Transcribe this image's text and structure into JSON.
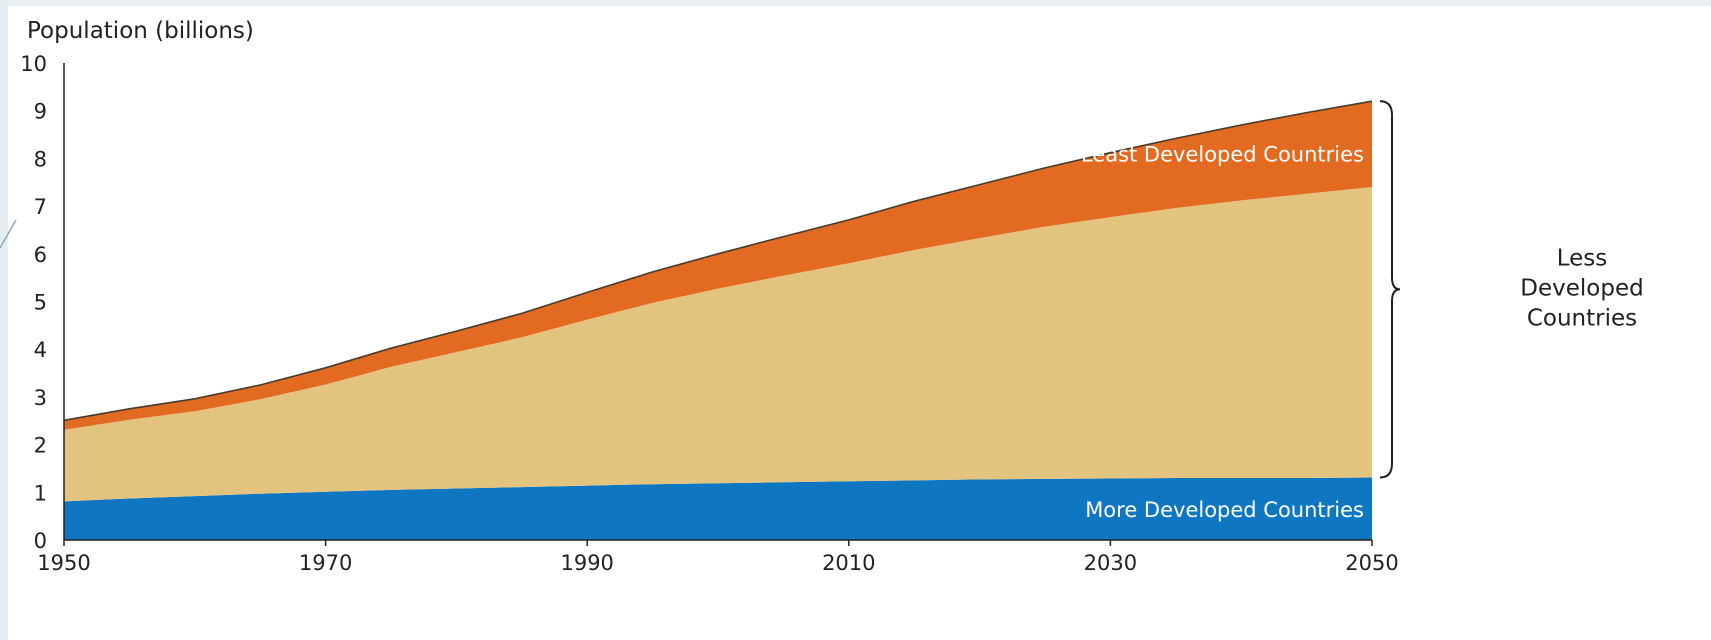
{
  "chart_data": {
    "type": "area",
    "stacked": true,
    "ylabel": "Population (billions)",
    "xlabel": "",
    "x": [
      1950,
      1955,
      1960,
      1965,
      1970,
      1975,
      1980,
      1985,
      1990,
      1995,
      2000,
      2005,
      2010,
      2015,
      2020,
      2025,
      2030,
      2035,
      2040,
      2045,
      2050
    ],
    "xticks": [
      1950,
      1970,
      1990,
      2010,
      2030,
      2050
    ],
    "xlim": [
      1950,
      2050
    ],
    "ylim": [
      0,
      10
    ],
    "yticks": [
      0,
      1,
      2,
      3,
      4,
      5,
      6,
      7,
      8,
      9,
      10
    ],
    "series": [
      {
        "name": "More Developed Countries",
        "color": "#0f77c1",
        "values": [
          0.81,
          0.87,
          0.92,
          0.97,
          1.01,
          1.05,
          1.08,
          1.11,
          1.14,
          1.17,
          1.19,
          1.21,
          1.23,
          1.25,
          1.27,
          1.28,
          1.29,
          1.3,
          1.3,
          1.3,
          1.31
        ]
      },
      {
        "name": "",
        "color": "#e3c47e",
        "values": [
          1.5,
          1.65,
          1.78,
          1.98,
          2.25,
          2.58,
          2.86,
          3.14,
          3.48,
          3.8,
          4.08,
          4.33,
          4.57,
          4.83,
          5.06,
          5.29,
          5.48,
          5.66,
          5.82,
          5.96,
          6.09
        ]
      },
      {
        "name": "Least Developed Countries",
        "color": "#e36b21",
        "values": [
          0.2,
          0.23,
          0.26,
          0.3,
          0.35,
          0.39,
          0.44,
          0.5,
          0.57,
          0.65,
          0.73,
          0.82,
          0.91,
          1.02,
          1.12,
          1.23,
          1.35,
          1.46,
          1.58,
          1.7,
          1.8
        ]
      }
    ],
    "bracket_label": [
      "Less",
      "Developed",
      "Countries"
    ],
    "grid": false
  }
}
